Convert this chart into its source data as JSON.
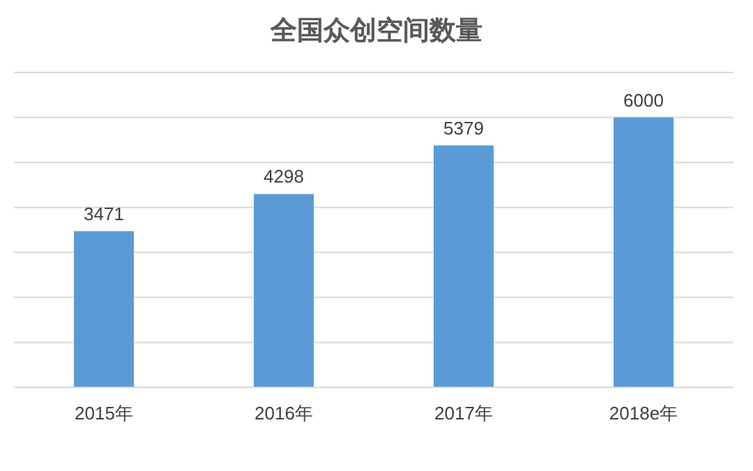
{
  "chart_data": {
    "type": "bar",
    "title": "全国众创空间数量",
    "categories": [
      "2015年",
      "2016年",
      "2017年",
      "2018e年"
    ],
    "values": [
      3471,
      4298,
      5379,
      6000
    ],
    "color": "#5b9bd5",
    "ylim": [
      0,
      7000
    ],
    "grid": "y",
    "tick_labels": "x",
    "data_labels": true,
    "legend": false
  }
}
